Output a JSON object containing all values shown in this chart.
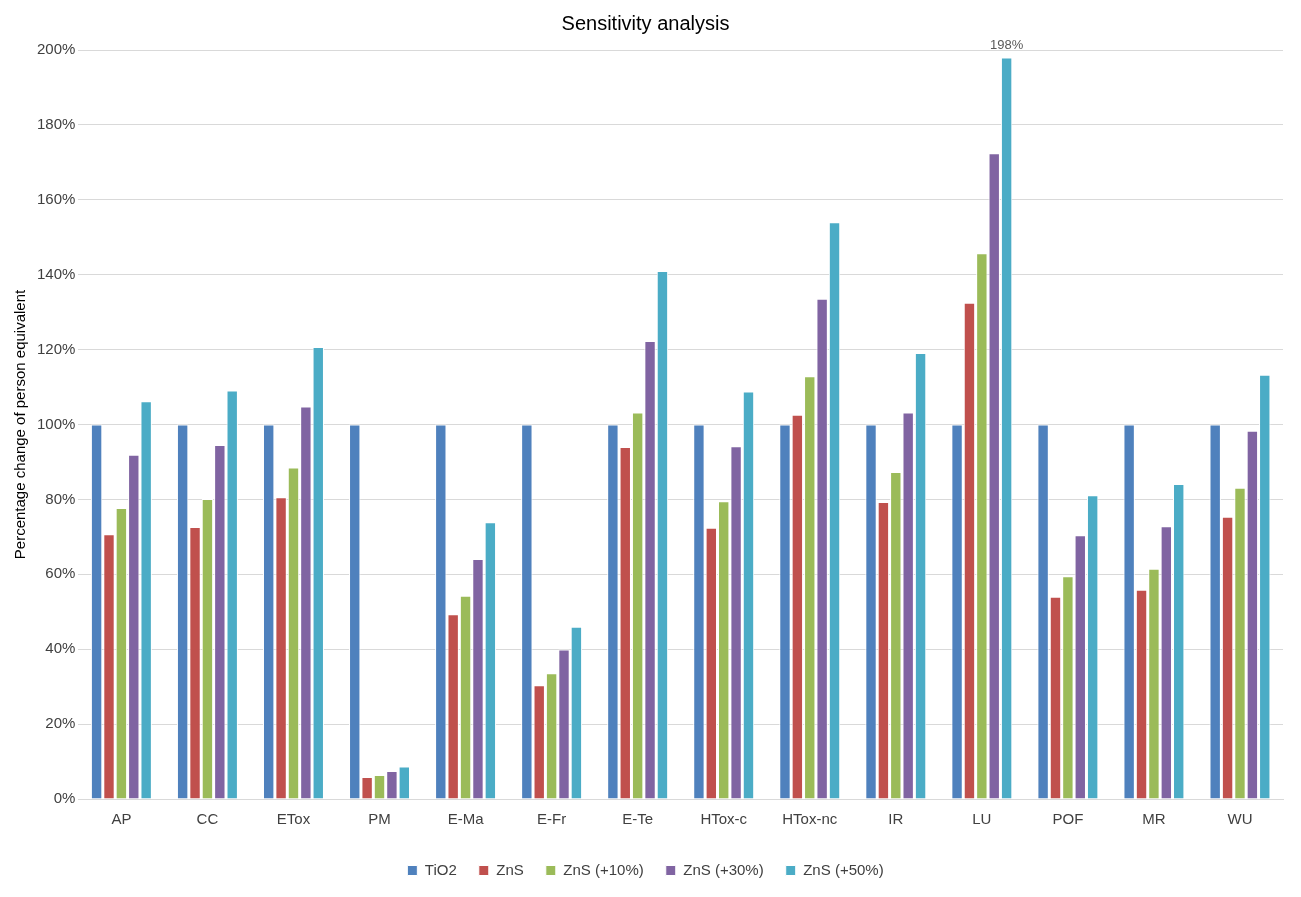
{
  "chart_data": {
    "type": "bar",
    "title": "Sensitivity analysis",
    "ylabel": "Percentage change of person equivalent",
    "categories": [
      "AP",
      "CC",
      "ETox",
      "PM",
      "E-Ma",
      "E-Fr",
      "E-Te",
      "HTox-c",
      "HTox-nc",
      "IR",
      "LU",
      "POF",
      "MR",
      "WU"
    ],
    "series": [
      {
        "name": "TiO2",
        "color": "#4f81bd",
        "values": [
          100,
          100,
          100,
          100,
          100,
          100,
          100,
          100,
          100,
          100,
          100,
          100,
          100,
          100
        ]
      },
      {
        "name": "ZnS",
        "color": "#c0504d",
        "values": [
          70.7,
          72.6,
          80.6,
          5.9,
          49.3,
          30.4,
          94.0,
          72.4,
          102.6,
          79.3,
          132.5,
          54.0,
          55.9,
          75.4
        ]
      },
      {
        "name": "ZnS (+10%)",
        "color": "#9bbb59",
        "values": [
          77.7,
          80.1,
          88.5,
          6.4,
          54.3,
          33.6,
          103.2,
          79.5,
          112.9,
          87.3,
          145.7,
          59.5,
          61.5,
          83.1
        ]
      },
      {
        "name": "ZnS (+30%)",
        "color": "#8064a2",
        "values": [
          91.9,
          94.5,
          104.8,
          7.5,
          64.1,
          39.9,
          122.3,
          94.2,
          133.6,
          103.2,
          172.4,
          70.4,
          72.8,
          98.3
        ]
      },
      {
        "name": "ZnS (+50%)",
        "color": "#4bacc6",
        "values": [
          106.2,
          109.1,
          120.7,
          8.7,
          73.9,
          46.0,
          141.0,
          108.8,
          154.0,
          119.1,
          198,
          81.1,
          84.1,
          113.3
        ],
        "value_labels": [
          null,
          null,
          null,
          null,
          null,
          null,
          null,
          null,
          null,
          null,
          "198%",
          null,
          null,
          null
        ]
      }
    ],
    "ylim": [
      0,
      200
    ],
    "yticks": [
      {
        "value": 0,
        "label": "0%"
      },
      {
        "value": 20,
        "label": "20%"
      },
      {
        "value": 40,
        "label": "40%"
      },
      {
        "value": 60,
        "label": "60%"
      },
      {
        "value": 80,
        "label": "80%"
      },
      {
        "value": 100,
        "label": "100%"
      },
      {
        "value": 120,
        "label": "120%"
      },
      {
        "value": 140,
        "label": "140%"
      },
      {
        "value": 160,
        "label": "160%"
      },
      {
        "value": 180,
        "label": "180%"
      },
      {
        "value": 200,
        "label": "200%"
      }
    ],
    "grid": "y",
    "legend": "bottom"
  }
}
